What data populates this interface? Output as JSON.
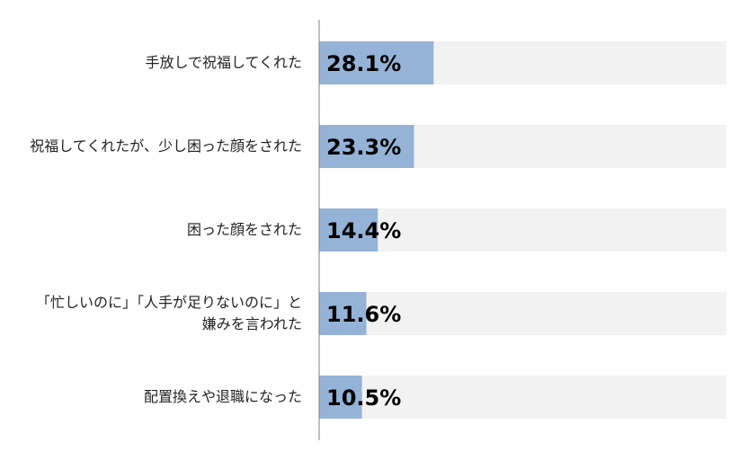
{
  "chart_data": {
    "type": "bar",
    "orientation": "horizontal",
    "categories": [
      [
        "手放しで祝福してくれた"
      ],
      [
        "祝福してくれたが、少し困った顔をされた"
      ],
      [
        "困った顔をされた"
      ],
      [
        "「忙しいのに」「人手が足りないのに」と",
        "嫌みを言われた"
      ],
      [
        "配置換えや退職になった"
      ]
    ],
    "values": [
      28.1,
      23.3,
      14.4,
      11.6,
      10.5
    ],
    "value_labels": [
      "28.1%",
      "23.3%",
      "14.4%",
      "11.6%",
      "10.5%"
    ],
    "xlim": [
      0,
      100
    ],
    "colors": {
      "bar": "#95b3d7",
      "track": "#f2f2f2",
      "axis": "#808080",
      "label": "#000000"
    },
    "grid": false,
    "legend": "none"
  }
}
